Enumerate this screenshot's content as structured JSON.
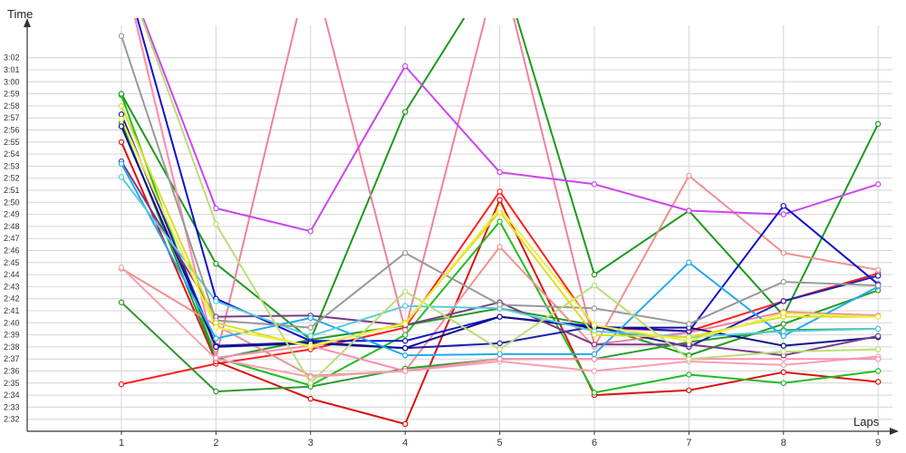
{
  "chart_data": {
    "type": "line",
    "xlabel": "Laps",
    "ylabel": "Time",
    "grid": true,
    "legend": "none",
    "x": [
      1,
      2,
      3,
      4,
      5,
      6,
      7,
      8,
      9
    ],
    "y_ticks": [
      "2:32",
      "2:33",
      "2:34",
      "2:35",
      "2:36",
      "2:37",
      "2:38",
      "2:39",
      "2:40",
      "2:41",
      "2:42",
      "2:43",
      "2:44",
      "2:45",
      "2:46",
      "2:47",
      "2:48",
      "2:49",
      "2:50",
      "2:51",
      "2:52",
      "2:53",
      "2:54",
      "2:55",
      "2:56",
      "2:57",
      "2:58",
      "2:59",
      "3:00",
      "3:01",
      "3:02"
    ],
    "ylim_seconds": [
      151,
      184
    ],
    "series": [
      {
        "color": "#ff2020",
        "values": [
          154.9,
          156.6,
          157.8,
          159.6,
          170.9,
          159.6,
          159.3,
          161.8,
          164.1
        ]
      },
      {
        "color": "#dd1010",
        "values": [
          175.0,
          156.8,
          153.7,
          151.6,
          170.2,
          154.0,
          154.4,
          155.9,
          155.1
        ]
      },
      {
        "color": "#22bb22",
        "values": [
          178.9,
          157.1,
          154.8,
          159.0,
          168.4,
          154.2,
          155.7,
          155.0,
          156.0
        ]
      },
      {
        "color": "#2a9a2a",
        "values": [
          161.7,
          154.3,
          154.7,
          156.2,
          157.0,
          157.0,
          158.4,
          159.4,
          159.5
        ]
      },
      {
        "color": "#1a9a1a",
        "values": [
          179.0,
          164.9,
          158.6,
          177.5,
          190.0,
          164.0,
          169.3,
          160.6,
          176.5
        ]
      },
      {
        "color": "#229922",
        "values": [
          176.6,
          157.0,
          158.6,
          159.8,
          161.2,
          159.8,
          157.3,
          159.9,
          162.7
        ]
      },
      {
        "color": "#f09090",
        "values": [
          164.5,
          159.8,
          155.6,
          156.0,
          166.3,
          158.0,
          172.2,
          165.8,
          164.4
        ]
      },
      {
        "color": "#f5a0b0",
        "values": [
          164.6,
          157.0,
          155.5,
          156.0,
          156.8,
          156.0,
          156.8,
          156.5,
          157.2
        ]
      },
      {
        "color": "#f080a0",
        "values": [
          190.0,
          157.1,
          190.0,
          159.4,
          190.0,
          158.2,
          159.2,
          160.9,
          160.6
        ]
      },
      {
        "color": "#ff8fb0",
        "values": [
          190.0,
          157.1,
          158.1,
          156.0,
          157.0,
          157.0,
          157.0,
          157.0,
          157.0
        ]
      },
      {
        "color": "#cc44ee",
        "values": [
          190.0,
          169.5,
          167.6,
          181.3,
          172.5,
          171.5,
          169.3,
          169.0,
          171.5
        ]
      },
      {
        "color": "#1010cc",
        "values": [
          190.0,
          162.0,
          158.5,
          158.5,
          160.5,
          159.7,
          159.3,
          169.7,
          163.2
        ]
      },
      {
        "color": "#2020aa",
        "values": [
          177.3,
          158.1,
          158.4,
          157.9,
          158.3,
          159.7,
          158.0,
          161.8,
          163.9
        ]
      },
      {
        "color": "#101088",
        "values": [
          176.3,
          158.0,
          158.3,
          157.9,
          160.5,
          159.6,
          159.6,
          158.1,
          158.8
        ]
      },
      {
        "color": "#7a3a8a",
        "values": [
          173.4,
          160.5,
          160.6,
          159.8,
          161.7,
          158.2,
          158.2,
          157.3,
          158.9
        ]
      },
      {
        "color": "#22aaee",
        "values": [
          173.2,
          158.7,
          160.4,
          157.3,
          157.4,
          157.4,
          165.0,
          158.9,
          163.0
        ]
      },
      {
        "color": "#55ccdd",
        "values": [
          172.1,
          161.8,
          158.9,
          161.4,
          161.2,
          159.3,
          158.8,
          159.3,
          159.5
        ]
      },
      {
        "color": "#999999",
        "values": [
          183.8,
          160.2,
          159.6,
          165.8,
          161.5,
          161.2,
          159.9,
          163.4,
          163.1
        ]
      },
      {
        "color": "#bbdd77",
        "values": [
          190.0,
          168.2,
          155.0,
          162.6,
          157.8,
          163.1,
          157.0,
          157.6,
          157.8
        ]
      },
      {
        "color": "#dddd22",
        "values": [
          178.0,
          160.0,
          158.0,
          160.0,
          169.2,
          159.0,
          158.8,
          160.5,
          160.5
        ]
      },
      {
        "color": "#eeee44",
        "values": [
          176.9,
          159.6,
          158.1,
          159.9,
          169.5,
          159.8,
          158.5,
          160.8,
          160.5
        ]
      }
    ]
  },
  "xlabel": "Laps",
  "ylabel": "Time"
}
